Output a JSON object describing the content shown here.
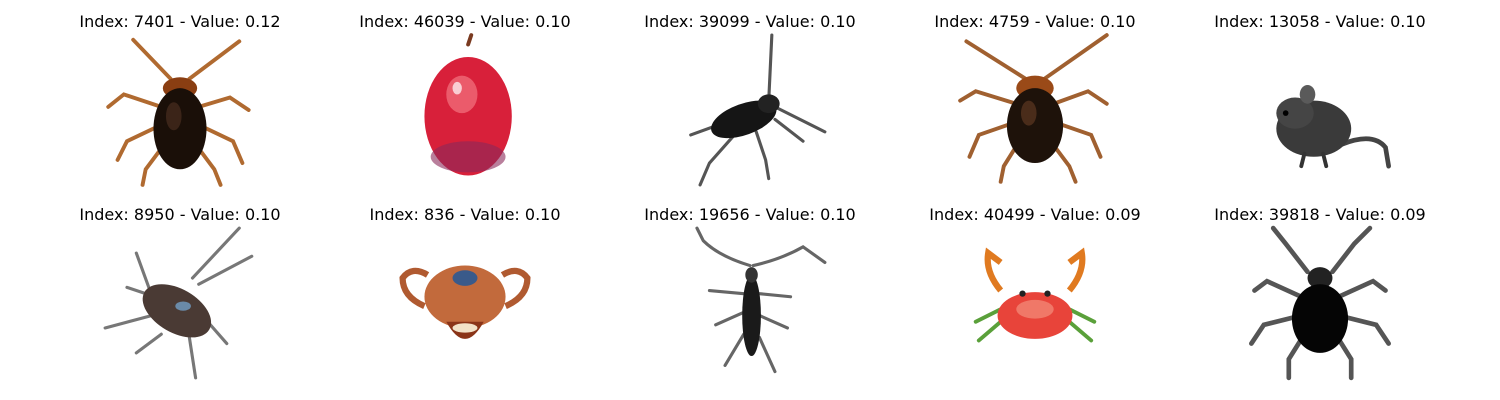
{
  "panels": [
    {
      "title": "Index: 7401 - Value: 0.12",
      "icon": "cockroach-icon"
    },
    {
      "title": "Index: 46039 - Value: 0.10",
      "icon": "apple-icon"
    },
    {
      "title": "Index: 39099 - Value: 0.10",
      "icon": "insect-icon"
    },
    {
      "title": "Index: 4759 - Value: 0.10",
      "icon": "cockroach-icon"
    },
    {
      "title": "Index: 13058 - Value: 0.10",
      "icon": "rat-icon"
    },
    {
      "title": "Index: 8950 - Value: 0.10",
      "icon": "cockroach-icon"
    },
    {
      "title": "Index: 836 - Value: 0.10",
      "icon": "crab-icon"
    },
    {
      "title": "Index: 19656 - Value: 0.10",
      "icon": "beetle-icon"
    },
    {
      "title": "Index: 40499 - Value: 0.09",
      "icon": "crab-icon"
    },
    {
      "title": "Index: 39818 - Value: 0.09",
      "icon": "spider-icon"
    }
  ]
}
